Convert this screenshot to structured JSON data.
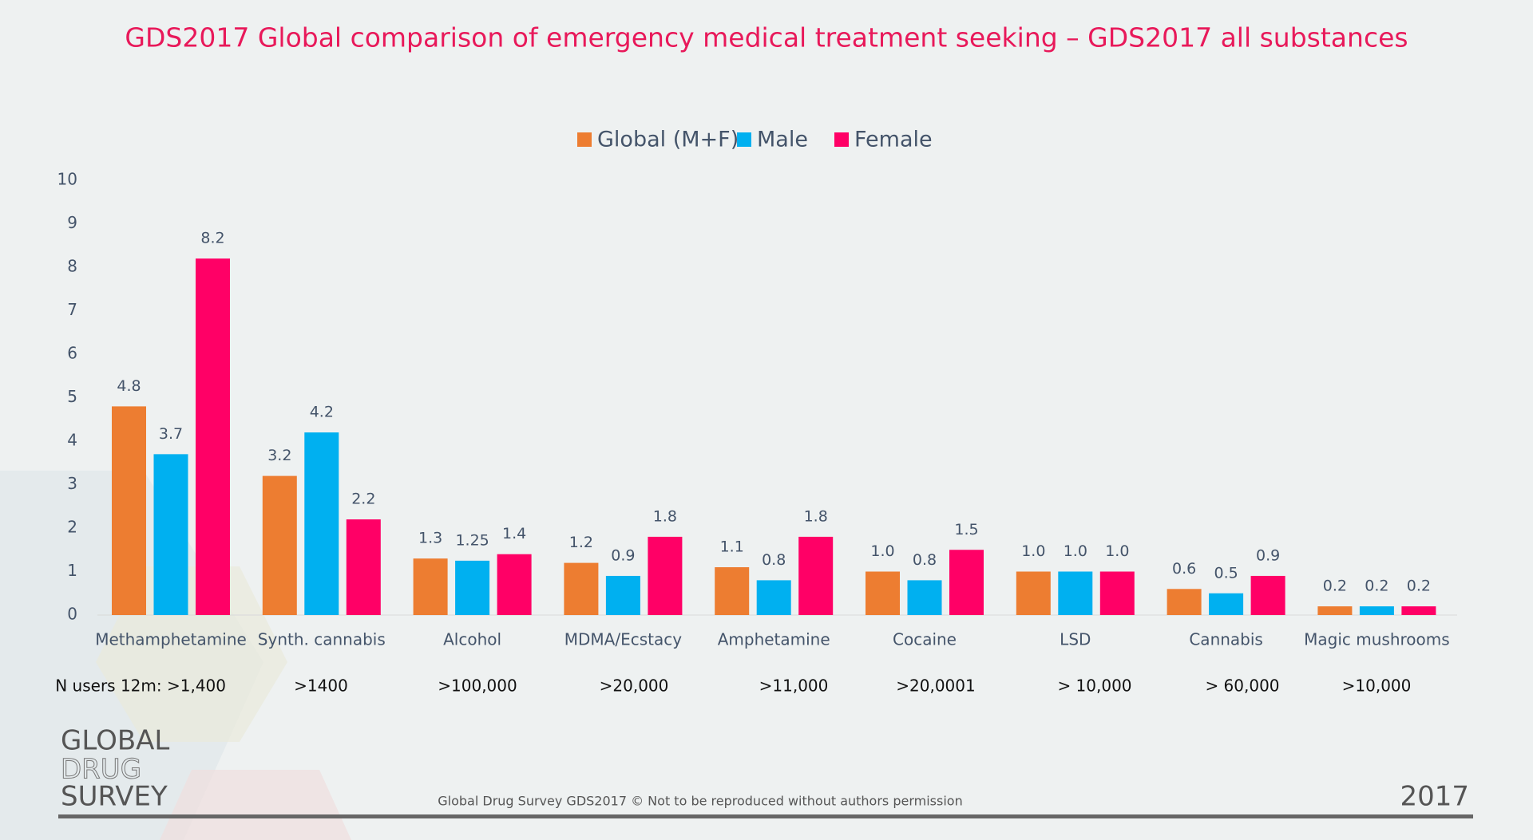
{
  "chart_data": {
    "type": "bar",
    "title": "GDS2017 Global comparison of emergency medical treatment seeking – GDS2017 all substances",
    "categories": [
      "Methamphetamine",
      "Synth. cannabis",
      "Alcohol",
      "MDMA/Ecstacy",
      "Amphetamine",
      "Cocaine",
      "LSD",
      "Cannabis",
      "Magic mushrooms"
    ],
    "series": [
      {
        "name": "Global (M+F)",
        "color": "#ed7d31",
        "values": [
          4.8,
          3.2,
          1.3,
          1.2,
          1.1,
          1.0,
          1.0,
          0.6,
          0.2
        ],
        "value_labels": [
          "4.8",
          "3.2",
          "1.3",
          "1.2",
          "1.1",
          "1.0",
          "1.0",
          "0.6",
          "0.2"
        ]
      },
      {
        "name": "Male",
        "color": "#00b0f0",
        "values": [
          3.7,
          4.2,
          1.25,
          0.9,
          0.8,
          0.8,
          1.0,
          0.5,
          0.2
        ],
        "value_labels": [
          "3.7",
          "4.2",
          "1.25",
          "0.9",
          "0.8",
          "0.8",
          "1.0",
          "0.5",
          "0.2"
        ]
      },
      {
        "name": "Female",
        "color": "#ff0066",
        "values": [
          8.2,
          2.2,
          1.4,
          1.8,
          1.8,
          1.5,
          1.0,
          0.9,
          0.2
        ],
        "value_labels": [
          "8.2",
          "2.2",
          "1.4",
          "1.8",
          "1.8",
          "1.5",
          "1.0",
          "0.9",
          "0.2"
        ]
      }
    ],
    "ylim": [
      0,
      10
    ],
    "yticks": [
      0,
      1,
      2,
      3,
      4,
      5,
      6,
      7,
      8,
      9,
      10
    ],
    "grid": false,
    "legend": "top",
    "n_users": [
      "N users 12m: >1,400",
      ">1400",
      ">100,000",
      ">20,000",
      ">11,000",
      ">20,0001",
      "> 10,000",
      "> 60,000",
      ">10,000"
    ]
  },
  "footer": {
    "logo": [
      "GLOBAL",
      "DRUG",
      "SURVEY"
    ],
    "notice": "Global Drug Survey GDS2017 © Not to be reproduced without authors permission",
    "year": "2017"
  }
}
